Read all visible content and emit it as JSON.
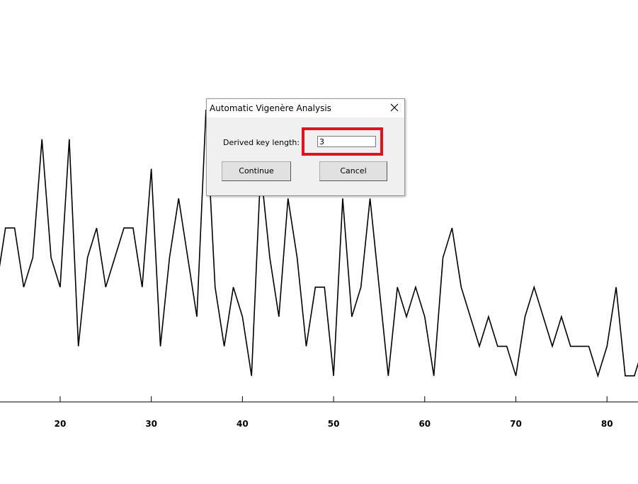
{
  "chart_data": {
    "type": "line",
    "color": "#000000",
    "x": [
      13,
      14,
      15,
      16,
      17,
      18,
      19,
      20,
      21,
      22,
      23,
      24,
      25,
      26,
      27,
      28,
      29,
      30,
      31,
      32,
      33,
      34,
      35,
      36,
      37,
      38,
      39,
      40,
      41,
      42,
      43,
      44,
      45,
      46,
      47,
      48,
      49,
      50,
      51,
      52,
      53,
      54,
      55,
      56,
      57,
      58,
      59,
      60,
      61,
      62,
      63,
      64,
      65,
      66,
      67,
      68,
      69,
      70,
      71,
      72,
      73,
      74,
      75,
      76,
      77,
      78,
      79,
      80,
      81,
      82,
      83,
      84
    ],
    "values": [
      4,
      6,
      6,
      4,
      5,
      9,
      5,
      4,
      9,
      2,
      5,
      6,
      4,
      5,
      6,
      6,
      4,
      8,
      2,
      5,
      7,
      5,
      3,
      10,
      4,
      2,
      4,
      3,
      1,
      8,
      5,
      3,
      7,
      5,
      2,
      4,
      4,
      1,
      7,
      3,
      4,
      7,
      4,
      1,
      4,
      3,
      4,
      3,
      1,
      5,
      6,
      4,
      3,
      2,
      3,
      2,
      2,
      1,
      3,
      4,
      3,
      2,
      3,
      2,
      2,
      2,
      1,
      2,
      4,
      1,
      1,
      2
    ],
    "xlim": [
      13.4,
      83.4
    ],
    "ylim": [
      0,
      10
    ],
    "xticks": [
      20,
      30,
      40,
      50,
      60,
      70,
      80
    ]
  },
  "dialog": {
    "title": "Automatic Vigenère Analysis",
    "label": "Derived key length:",
    "input_value": "3",
    "buttons": [
      "Continue",
      "Cancel"
    ]
  }
}
